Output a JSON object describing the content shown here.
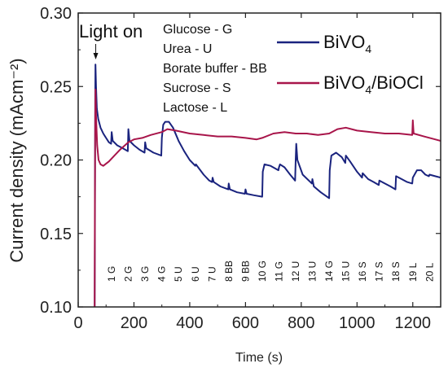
{
  "chart_data": {
    "type": "line",
    "xlabel": "Time (s)",
    "ylabel": "Current density (mAcm⁻²)",
    "xlim": [
      0,
      1300
    ],
    "ylim": [
      0.1,
      0.3
    ],
    "xticks": [
      0,
      200,
      400,
      600,
      800,
      1000,
      1200
    ],
    "xtick_labels": [
      "0",
      "200",
      "400",
      "600",
      "800",
      "1000",
      "1200"
    ],
    "yticks": [
      0.1,
      0.15,
      0.2,
      0.25,
      0.3
    ],
    "ytick_labels": [
      "0.10",
      "0.15",
      "0.20",
      "0.25",
      "0.30"
    ],
    "grid": false,
    "legend_position": "top-right",
    "annotation": {
      "text": "Light on",
      "x": 60,
      "y": 0.265
    },
    "analyte_key": [
      "Glucose - G",
      "Urea - U",
      "Borate buffer - BB",
      "Sucrose - S",
      "Lactose - L"
    ],
    "injections": [
      {
        "label": "1 G",
        "x": 120
      },
      {
        "label": "2 G",
        "x": 180
      },
      {
        "label": "3 G",
        "x": 240
      },
      {
        "label": "4 G",
        "x": 300
      },
      {
        "label": "5 U",
        "x": 360
      },
      {
        "label": "6 U",
        "x": 420
      },
      {
        "label": "7 U",
        "x": 480
      },
      {
        "label": "8 BB",
        "x": 540
      },
      {
        "label": "9 BB",
        "x": 600
      },
      {
        "label": "10 G",
        "x": 660
      },
      {
        "label": "11 G",
        "x": 720
      },
      {
        "label": "12 U",
        "x": 780
      },
      {
        "label": "13 U",
        "x": 840
      },
      {
        "label": "14 G",
        "x": 900
      },
      {
        "label": "15 U",
        "x": 960
      },
      {
        "label": "16 S",
        "x": 1020
      },
      {
        "label": "17 S",
        "x": 1080
      },
      {
        "label": "18 S",
        "x": 1140
      },
      {
        "label": "19 L",
        "x": 1200
      },
      {
        "label": "20 L",
        "x": 1260
      }
    ],
    "series": [
      {
        "name": "BiVO",
        "name_sub": "4",
        "color": "#1a237e",
        "points": [
          [
            59,
            0.1
          ],
          [
            60,
            0.15
          ],
          [
            61,
            0.24
          ],
          [
            62,
            0.265
          ],
          [
            64,
            0.25
          ],
          [
            67,
            0.235
          ],
          [
            72,
            0.228
          ],
          [
            80,
            0.222
          ],
          [
            90,
            0.218
          ],
          [
            100,
            0.215
          ],
          [
            110,
            0.212
          ],
          [
            118,
            0.211
          ],
          [
            120,
            0.219
          ],
          [
            124,
            0.213
          ],
          [
            140,
            0.21
          ],
          [
            160,
            0.208
          ],
          [
            178,
            0.206
          ],
          [
            180,
            0.221
          ],
          [
            184,
            0.213
          ],
          [
            200,
            0.21
          ],
          [
            220,
            0.207
          ],
          [
            238,
            0.205
          ],
          [
            240,
            0.212
          ],
          [
            244,
            0.208
          ],
          [
            270,
            0.205
          ],
          [
            298,
            0.203
          ],
          [
            300,
            0.215
          ],
          [
            305,
            0.224
          ],
          [
            312,
            0.226
          ],
          [
            325,
            0.226
          ],
          [
            340,
            0.222
          ],
          [
            358,
            0.214
          ],
          [
            360,
            0.213
          ],
          [
            380,
            0.206
          ],
          [
            400,
            0.2
          ],
          [
            420,
            0.196
          ],
          [
            422,
            0.197
          ],
          [
            450,
            0.19
          ],
          [
            470,
            0.186
          ],
          [
            480,
            0.185
          ],
          [
            482,
            0.188
          ],
          [
            486,
            0.185
          ],
          [
            510,
            0.182
          ],
          [
            538,
            0.18
          ],
          [
            540,
            0.184
          ],
          [
            544,
            0.18
          ],
          [
            570,
            0.178
          ],
          [
            598,
            0.177
          ],
          [
            600,
            0.18
          ],
          [
            604,
            0.177
          ],
          [
            630,
            0.176
          ],
          [
            660,
            0.175
          ],
          [
            662,
            0.192
          ],
          [
            668,
            0.197
          ],
          [
            690,
            0.196
          ],
          [
            718,
            0.193
          ],
          [
            720,
            0.195
          ],
          [
            724,
            0.197
          ],
          [
            740,
            0.195
          ],
          [
            760,
            0.19
          ],
          [
            778,
            0.186
          ],
          [
            780,
            0.2
          ],
          [
            782,
            0.211
          ],
          [
            786,
            0.2
          ],
          [
            805,
            0.19
          ],
          [
            838,
            0.184
          ],
          [
            840,
            0.187
          ],
          [
            845,
            0.182
          ],
          [
            870,
            0.178
          ],
          [
            900,
            0.174
          ],
          [
            902,
            0.193
          ],
          [
            908,
            0.203
          ],
          [
            925,
            0.205
          ],
          [
            945,
            0.202
          ],
          [
            958,
            0.198
          ],
          [
            960,
            0.203
          ],
          [
            975,
            0.199
          ],
          [
            1000,
            0.192
          ],
          [
            1018,
            0.188
          ],
          [
            1020,
            0.191
          ],
          [
            1040,
            0.187
          ],
          [
            1060,
            0.185
          ],
          [
            1078,
            0.183
          ],
          [
            1080,
            0.186
          ],
          [
            1100,
            0.184
          ],
          [
            1120,
            0.182
          ],
          [
            1138,
            0.18
          ],
          [
            1140,
            0.189
          ],
          [
            1160,
            0.187
          ],
          [
            1180,
            0.185
          ],
          [
            1198,
            0.184
          ],
          [
            1200,
            0.188
          ],
          [
            1215,
            0.193
          ],
          [
            1230,
            0.193
          ],
          [
            1245,
            0.19
          ],
          [
            1258,
            0.189
          ],
          [
            1260,
            0.19
          ],
          [
            1280,
            0.189
          ],
          [
            1300,
            0.188
          ]
        ]
      },
      {
        "name": "BiVO",
        "name_sub": "4",
        "name_suffix": "/BiOCl",
        "color": "#a8154a",
        "points": [
          [
            59,
            0.1
          ],
          [
            60,
            0.17
          ],
          [
            61,
            0.23
          ],
          [
            62,
            0.248
          ],
          [
            64,
            0.23
          ],
          [
            68,
            0.21
          ],
          [
            73,
            0.2
          ],
          [
            80,
            0.197
          ],
          [
            90,
            0.196
          ],
          [
            110,
            0.199
          ],
          [
            130,
            0.203
          ],
          [
            150,
            0.207
          ],
          [
            180,
            0.212
          ],
          [
            200,
            0.214
          ],
          [
            230,
            0.215
          ],
          [
            260,
            0.217
          ],
          [
            300,
            0.219
          ],
          [
            320,
            0.221
          ],
          [
            350,
            0.22
          ],
          [
            400,
            0.218
          ],
          [
            450,
            0.217
          ],
          [
            500,
            0.216
          ],
          [
            550,
            0.216
          ],
          [
            600,
            0.215
          ],
          [
            640,
            0.214
          ],
          [
            660,
            0.215
          ],
          [
            700,
            0.218
          ],
          [
            740,
            0.219
          ],
          [
            780,
            0.218
          ],
          [
            820,
            0.218
          ],
          [
            860,
            0.217
          ],
          [
            900,
            0.218
          ],
          [
            930,
            0.221
          ],
          [
            960,
            0.222
          ],
          [
            1000,
            0.22
          ],
          [
            1050,
            0.219
          ],
          [
            1100,
            0.218
          ],
          [
            1150,
            0.218
          ],
          [
            1198,
            0.217
          ],
          [
            1200,
            0.227
          ],
          [
            1203,
            0.218
          ],
          [
            1240,
            0.216
          ],
          [
            1280,
            0.214
          ],
          [
            1300,
            0.213
          ]
        ]
      }
    ]
  }
}
